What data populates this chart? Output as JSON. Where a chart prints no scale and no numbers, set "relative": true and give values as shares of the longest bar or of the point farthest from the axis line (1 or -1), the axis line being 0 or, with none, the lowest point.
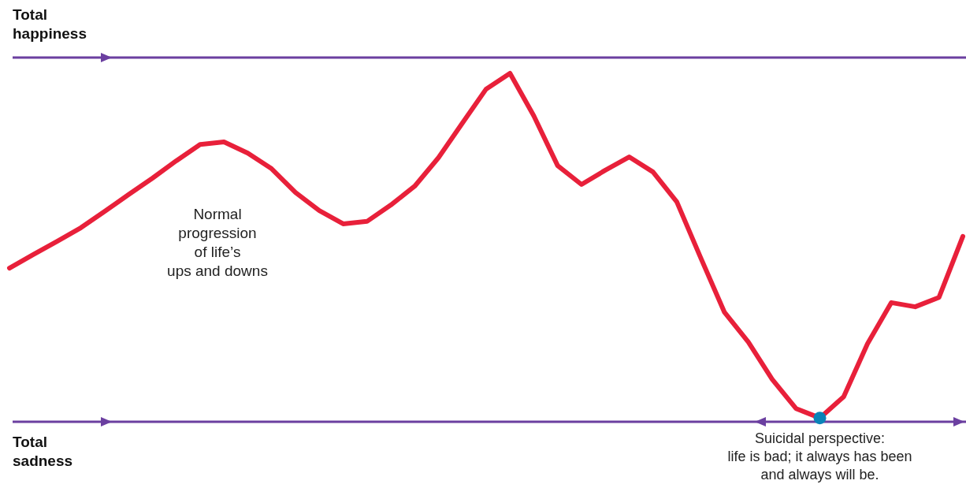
{
  "chart_data": {
    "type": "line",
    "relative": true,
    "categories": [
      null,
      null,
      null,
      null,
      null,
      null,
      null,
      null,
      null,
      null,
      null,
      null,
      null,
      null,
      null,
      null,
      null,
      null,
      null,
      null,
      null,
      null,
      null,
      null,
      null,
      null,
      null,
      null,
      null,
      null,
      null,
      null,
      null,
      null,
      null,
      null,
      null,
      null,
      null,
      null,
      null
    ],
    "series": [
      {
        "color": "#e8203a",
        "values": [
          0.441,
          0.48,
          0.518,
          0.557,
          0.604,
          0.652,
          0.699,
          0.749,
          0.796,
          0.803,
          0.771,
          0.726,
          0.658,
          0.606,
          0.568,
          0.575,
          0.622,
          0.676,
          0.758,
          0.857,
          0.955,
          1.0,
          0.878,
          0.735,
          0.681,
          0.722,
          0.76,
          0.717,
          0.631,
          0.471,
          0.314,
          0.229,
          0.122,
          0.038,
          0.011,
          0.072,
          0.224,
          0.342,
          0.33,
          0.357,
          0.532
        ]
      }
    ],
    "ref_lines": [
      {
        "axis": "y",
        "value": 1.045,
        "label": "Total happiness",
        "color": "#6b3fa0"
      },
      {
        "axis": "y",
        "value": 0,
        "label": "Total sadness",
        "color": "#6b3fa0"
      }
    ],
    "annotations": [
      "Normal\nprogression\nof life’s\nups and downs",
      {
        "text": "Suicidal perspective:\nlife is bad; it always has been\nand always will be.",
        "y": 0.011
      }
    ]
  }
}
